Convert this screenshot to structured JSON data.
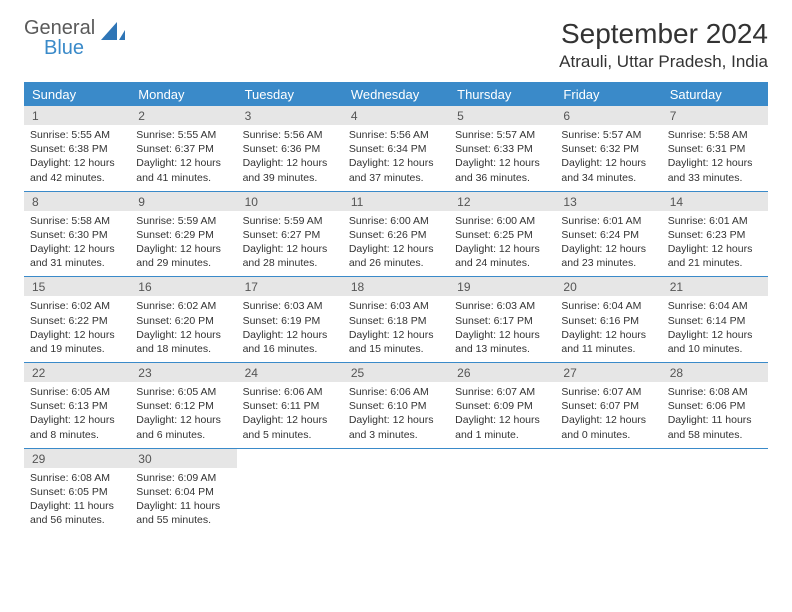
{
  "brand": {
    "line1": "General",
    "line2": "Blue"
  },
  "colors": {
    "accent": "#3a8ac9",
    "header_text": "#ffffff",
    "daynum_bg": "#e6e6e6",
    "text": "#333333",
    "logo_gray": "#5a5a5a"
  },
  "title": {
    "month": "September 2024",
    "location": "Atrauli, Uttar Pradesh, India"
  },
  "weekdays": [
    "Sunday",
    "Monday",
    "Tuesday",
    "Wednesday",
    "Thursday",
    "Friday",
    "Saturday"
  ],
  "weeks": [
    {
      "days": [
        {
          "num": "1",
          "sunrise": "Sunrise: 5:55 AM",
          "sunset": "Sunset: 6:38 PM",
          "daylight": "Daylight: 12 hours and 42 minutes."
        },
        {
          "num": "2",
          "sunrise": "Sunrise: 5:55 AM",
          "sunset": "Sunset: 6:37 PM",
          "daylight": "Daylight: 12 hours and 41 minutes."
        },
        {
          "num": "3",
          "sunrise": "Sunrise: 5:56 AM",
          "sunset": "Sunset: 6:36 PM",
          "daylight": "Daylight: 12 hours and 39 minutes."
        },
        {
          "num": "4",
          "sunrise": "Sunrise: 5:56 AM",
          "sunset": "Sunset: 6:34 PM",
          "daylight": "Daylight: 12 hours and 37 minutes."
        },
        {
          "num": "5",
          "sunrise": "Sunrise: 5:57 AM",
          "sunset": "Sunset: 6:33 PM",
          "daylight": "Daylight: 12 hours and 36 minutes."
        },
        {
          "num": "6",
          "sunrise": "Sunrise: 5:57 AM",
          "sunset": "Sunset: 6:32 PM",
          "daylight": "Daylight: 12 hours and 34 minutes."
        },
        {
          "num": "7",
          "sunrise": "Sunrise: 5:58 AM",
          "sunset": "Sunset: 6:31 PM",
          "daylight": "Daylight: 12 hours and 33 minutes."
        }
      ]
    },
    {
      "days": [
        {
          "num": "8",
          "sunrise": "Sunrise: 5:58 AM",
          "sunset": "Sunset: 6:30 PM",
          "daylight": "Daylight: 12 hours and 31 minutes."
        },
        {
          "num": "9",
          "sunrise": "Sunrise: 5:59 AM",
          "sunset": "Sunset: 6:29 PM",
          "daylight": "Daylight: 12 hours and 29 minutes."
        },
        {
          "num": "10",
          "sunrise": "Sunrise: 5:59 AM",
          "sunset": "Sunset: 6:27 PM",
          "daylight": "Daylight: 12 hours and 28 minutes."
        },
        {
          "num": "11",
          "sunrise": "Sunrise: 6:00 AM",
          "sunset": "Sunset: 6:26 PM",
          "daylight": "Daylight: 12 hours and 26 minutes."
        },
        {
          "num": "12",
          "sunrise": "Sunrise: 6:00 AM",
          "sunset": "Sunset: 6:25 PM",
          "daylight": "Daylight: 12 hours and 24 minutes."
        },
        {
          "num": "13",
          "sunrise": "Sunrise: 6:01 AM",
          "sunset": "Sunset: 6:24 PM",
          "daylight": "Daylight: 12 hours and 23 minutes."
        },
        {
          "num": "14",
          "sunrise": "Sunrise: 6:01 AM",
          "sunset": "Sunset: 6:23 PM",
          "daylight": "Daylight: 12 hours and 21 minutes."
        }
      ]
    },
    {
      "days": [
        {
          "num": "15",
          "sunrise": "Sunrise: 6:02 AM",
          "sunset": "Sunset: 6:22 PM",
          "daylight": "Daylight: 12 hours and 19 minutes."
        },
        {
          "num": "16",
          "sunrise": "Sunrise: 6:02 AM",
          "sunset": "Sunset: 6:20 PM",
          "daylight": "Daylight: 12 hours and 18 minutes."
        },
        {
          "num": "17",
          "sunrise": "Sunrise: 6:03 AM",
          "sunset": "Sunset: 6:19 PM",
          "daylight": "Daylight: 12 hours and 16 minutes."
        },
        {
          "num": "18",
          "sunrise": "Sunrise: 6:03 AM",
          "sunset": "Sunset: 6:18 PM",
          "daylight": "Daylight: 12 hours and 15 minutes."
        },
        {
          "num": "19",
          "sunrise": "Sunrise: 6:03 AM",
          "sunset": "Sunset: 6:17 PM",
          "daylight": "Daylight: 12 hours and 13 minutes."
        },
        {
          "num": "20",
          "sunrise": "Sunrise: 6:04 AM",
          "sunset": "Sunset: 6:16 PM",
          "daylight": "Daylight: 12 hours and 11 minutes."
        },
        {
          "num": "21",
          "sunrise": "Sunrise: 6:04 AM",
          "sunset": "Sunset: 6:14 PM",
          "daylight": "Daylight: 12 hours and 10 minutes."
        }
      ]
    },
    {
      "days": [
        {
          "num": "22",
          "sunrise": "Sunrise: 6:05 AM",
          "sunset": "Sunset: 6:13 PM",
          "daylight": "Daylight: 12 hours and 8 minutes."
        },
        {
          "num": "23",
          "sunrise": "Sunrise: 6:05 AM",
          "sunset": "Sunset: 6:12 PM",
          "daylight": "Daylight: 12 hours and 6 minutes."
        },
        {
          "num": "24",
          "sunrise": "Sunrise: 6:06 AM",
          "sunset": "Sunset: 6:11 PM",
          "daylight": "Daylight: 12 hours and 5 minutes."
        },
        {
          "num": "25",
          "sunrise": "Sunrise: 6:06 AM",
          "sunset": "Sunset: 6:10 PM",
          "daylight": "Daylight: 12 hours and 3 minutes."
        },
        {
          "num": "26",
          "sunrise": "Sunrise: 6:07 AM",
          "sunset": "Sunset: 6:09 PM",
          "daylight": "Daylight: 12 hours and 1 minute."
        },
        {
          "num": "27",
          "sunrise": "Sunrise: 6:07 AM",
          "sunset": "Sunset: 6:07 PM",
          "daylight": "Daylight: 12 hours and 0 minutes."
        },
        {
          "num": "28",
          "sunrise": "Sunrise: 6:08 AM",
          "sunset": "Sunset: 6:06 PM",
          "daylight": "Daylight: 11 hours and 58 minutes."
        }
      ]
    },
    {
      "days": [
        {
          "num": "29",
          "sunrise": "Sunrise: 6:08 AM",
          "sunset": "Sunset: 6:05 PM",
          "daylight": "Daylight: 11 hours and 56 minutes."
        },
        {
          "num": "30",
          "sunrise": "Sunrise: 6:09 AM",
          "sunset": "Sunset: 6:04 PM",
          "daylight": "Daylight: 11 hours and 55 minutes."
        },
        null,
        null,
        null,
        null,
        null
      ]
    }
  ]
}
